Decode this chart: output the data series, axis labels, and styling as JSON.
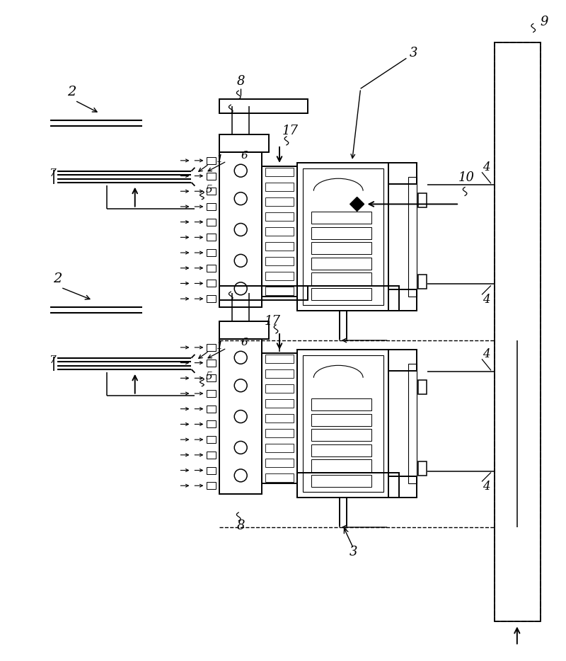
{
  "bg_color": "#ffffff",
  "line_color": "#000000",
  "figsize": [
    8.0,
    9.34
  ],
  "dpi": 100,
  "lw_main": 1.4,
  "lw_thin": 0.8,
  "lw_med": 1.1
}
